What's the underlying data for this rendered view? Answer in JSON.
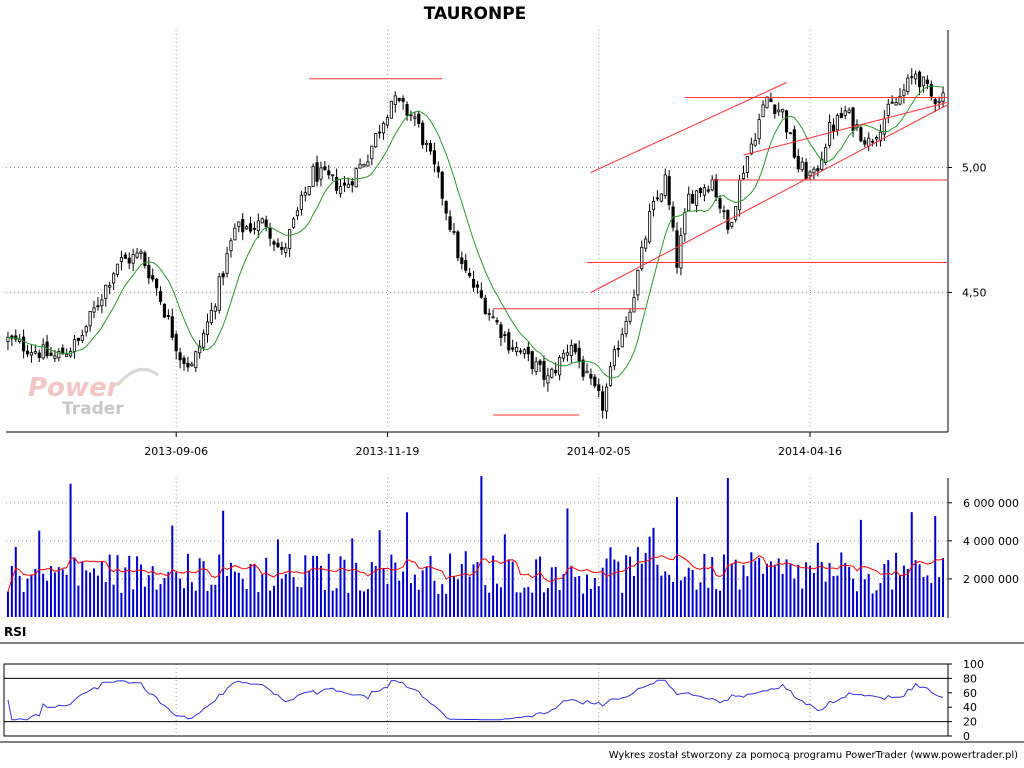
{
  "title": "TAURONPE",
  "footer": "Wykres został stworzony za pomocą programu PowerTrader (www.powertrader.pl)",
  "logo": {
    "line1": "Power",
    "line2": "Trader"
  },
  "colors": {
    "candle": "#000000",
    "ma": "#2a9a2a",
    "trend": "#ff3030",
    "volume": "#0000cc",
    "volume_ma": "#ff0000",
    "rsi": "#3333dd",
    "grid": "#999999"
  },
  "chart_data": [
    {
      "type": "candlestick",
      "title": "TAURONPE",
      "x_ticks": [
        "2013-09-06",
        "2013-11-19",
        "2014-02-05",
        "2014-04-16"
      ],
      "y_ticks": [
        "4,50",
        "5,00"
      ],
      "ylim": [
        3.95,
        5.55
      ],
      "grid": true,
      "overlays": [
        "moving-average",
        "trendlines"
      ]
    },
    {
      "type": "bar",
      "name": "volume",
      "y_ticks": [
        "2 000 000",
        "4 000 000",
        "6 000 000"
      ],
      "ylim": [
        0,
        7300000
      ],
      "overlays": [
        "moving-average"
      ]
    },
    {
      "type": "line",
      "label": "RSI",
      "y_ticks": [
        "0",
        "20",
        "40",
        "60",
        "80",
        "100"
      ],
      "ylim": [
        0,
        100
      ],
      "levels": [
        20,
        80
      ]
    }
  ]
}
